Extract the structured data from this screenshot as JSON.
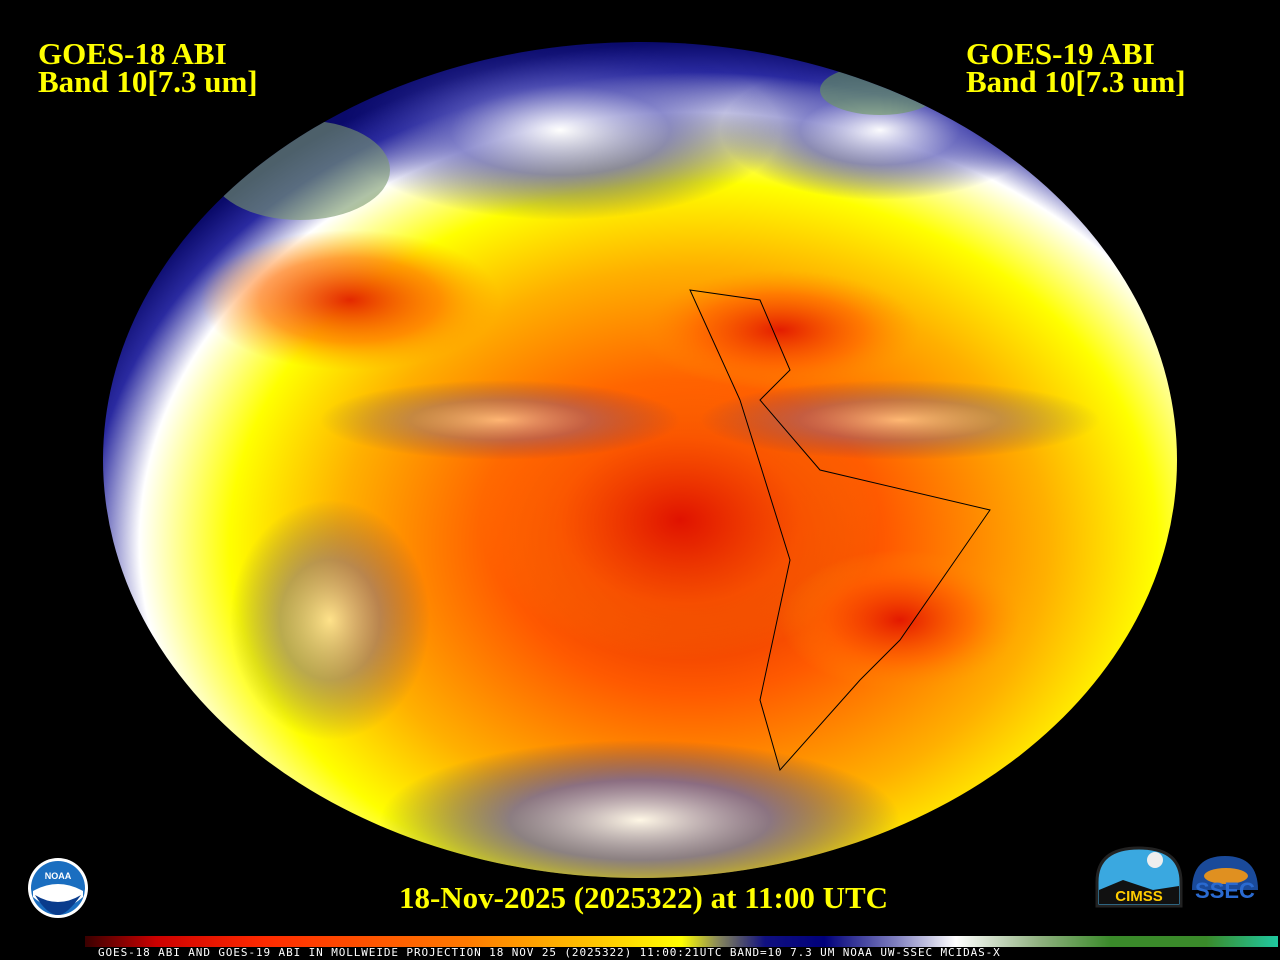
{
  "header": {
    "left_satellite": "GOES-18 ABI",
    "left_band": "Band 10[7.3 um]",
    "right_satellite": "GOES-19 ABI",
    "right_band": "Band 10[7.3 um]"
  },
  "image": {
    "projection": "Mollweide",
    "type": "water vapor satellite composite"
  },
  "timestamp": "18-Nov-2025 (2025322) at 11:00 UTC",
  "footer": "GOES-18 ABI AND GOES-19 ABI IN MOLLWEIDE PROJECTION 18 NOV 25 (2025322) 11:00:21UTC BAND=10 7.3 UM NOAA UW-SSEC MCIDAS-X",
  "logos": {
    "left": "NOAA",
    "right_1": "CIMSS",
    "right_2": "SSEC"
  },
  "colorbar": [
    "#3a0000",
    "#cc0000",
    "#ff2a00",
    "#ff7a00",
    "#ffc000",
    "#ffff00",
    "#8a8a5a",
    "#101080",
    "#00007a",
    "#8080c0",
    "#ffffff",
    "#90b080",
    "#3a8a2a",
    "#20c8a0"
  ]
}
